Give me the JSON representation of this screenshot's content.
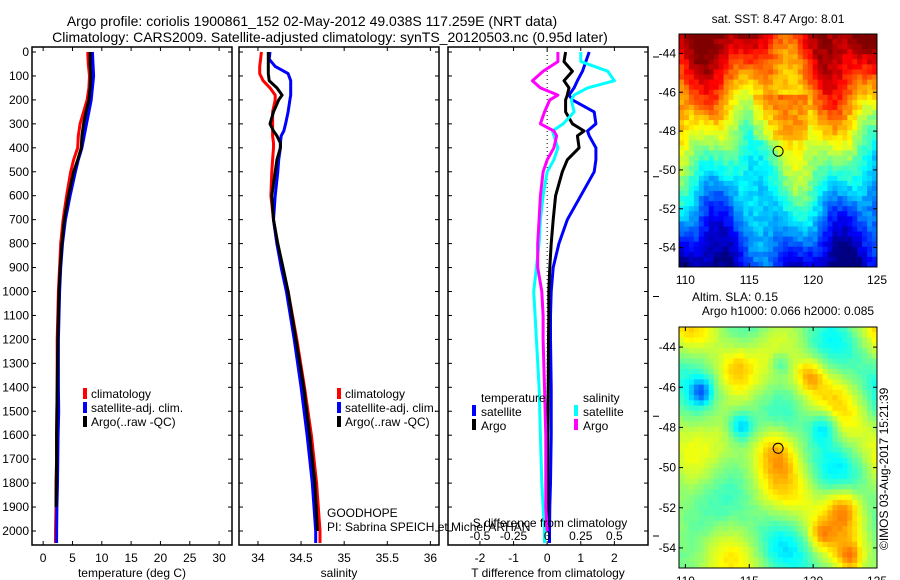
{
  "header": {
    "title_line1": "Argo profile: coriolis 1900861_152 02-May-2012 49.038S 117.259E (NRT data)",
    "title_line2": "Climatology: CARS2009. Satellite-adjusted climatology: synTS_20120503.nc (0.95d later)"
  },
  "colors": {
    "climatology": "#ff0000",
    "satellite": "#0000ff",
    "argo": "#000000",
    "salinity_satellite": "#00ffff",
    "salinity_argo": "#ff00ff"
  },
  "chart_data": [
    {
      "id": "temperature",
      "type": "line",
      "xlabel": "temperature (deg C)",
      "ylabel": "",
      "xlim": [
        -1.9,
        32.2
      ],
      "ylim": [
        2060,
        0
      ],
      "xticks": [
        0,
        5,
        10,
        15,
        20,
        25,
        30
      ],
      "xtick_labels": [
        "0",
        "5",
        "10",
        "15",
        "20",
        "25",
        "30"
      ],
      "yticks": [
        0,
        100,
        200,
        300,
        400,
        500,
        600,
        700,
        800,
        900,
        1000,
        1100,
        1200,
        1300,
        1400,
        1500,
        1600,
        1700,
        1800,
        1900,
        2000
      ],
      "ytick_labels": [
        "0",
        "100",
        "200",
        "300",
        "400",
        "500",
        "600",
        "700",
        "800",
        "900",
        "1000",
        "1100",
        "1200",
        "1300",
        "1400",
        "1500",
        "1600",
        "1700",
        "1800",
        "1900",
        "2000"
      ],
      "legend": [
        "climatology",
        "satellite-adj. clim.",
        "Argo(..raw -QC)"
      ],
      "depth": [
        0,
        50,
        100,
        150,
        200,
        250,
        300,
        350,
        400,
        450,
        500,
        600,
        700,
        800,
        900,
        1000,
        1100,
        1200,
        1300,
        1400,
        1500,
        1600,
        1700,
        1800,
        1900,
        2000,
        2050
      ],
      "series": [
        {
          "name": "climatology",
          "color_key": "climatology",
          "values": [
            7.6,
            7.7,
            7.9,
            7.8,
            7.5,
            6.9,
            6.3,
            6.0,
            5.9,
            5.2,
            4.7,
            4.0,
            3.4,
            3.0,
            2.8,
            2.6,
            2.5,
            2.4,
            2.4,
            2.4,
            2.35,
            2.3,
            2.3,
            2.2,
            2.2,
            2.1,
            2.1
          ]
        },
        {
          "name": "satellite-adj. clim.",
          "color_key": "satellite",
          "values": [
            8.4,
            8.5,
            8.6,
            8.4,
            8.2,
            7.8,
            7.4,
            7.0,
            6.6,
            6.0,
            5.5,
            4.6,
            3.8,
            3.3,
            3.0,
            2.8,
            2.7,
            2.6,
            2.6,
            2.6,
            2.65,
            2.55,
            2.5,
            2.45,
            2.35,
            2.3,
            2.3
          ]
        },
        {
          "name": "Argo(..raw -QC)",
          "color_key": "argo",
          "values": [
            8.0,
            8.0,
            8.1,
            8.0,
            7.8,
            7.3,
            6.9,
            6.6,
            6.5,
            5.9,
            5.2,
            4.3,
            3.6,
            3.2,
            2.9,
            2.7,
            2.6,
            2.5,
            2.45,
            2.4,
            2.35,
            2.3,
            2.3,
            2.25,
            2.2,
            null,
            null
          ]
        }
      ]
    },
    {
      "id": "salinity",
      "type": "line",
      "xlabel": "salinity",
      "xlim": [
        33.78,
        36.1
      ],
      "ylim": [
        2060,
        0
      ],
      "xticks": [
        34,
        34.5,
        35,
        35.5,
        36
      ],
      "xtick_labels": [
        "34",
        "34.5",
        "35",
        "35.5",
        "36"
      ],
      "legend": [
        "climatology",
        "satellite-adj. clim.",
        "Argo(..raw -QC)"
      ],
      "annotation": [
        "GOODHOPE",
        "PI: Sabrina SPEICH et Michel ARHAN"
      ],
      "depth": [
        0,
        30,
        60,
        90,
        120,
        150,
        180,
        200,
        250,
        300,
        330,
        350,
        380,
        400,
        450,
        500,
        600,
        700,
        800,
        900,
        1000,
        1200,
        1400,
        1600,
        1800,
        2000,
        2050
      ],
      "series": [
        {
          "name": "climatology",
          "color_key": "climatology",
          "values": [
            34.04,
            34.03,
            34.02,
            34.02,
            34.06,
            34.14,
            34.2,
            34.2,
            34.17,
            34.17,
            34.17,
            34.17,
            34.18,
            34.18,
            34.17,
            34.16,
            34.15,
            34.18,
            34.22,
            34.28,
            34.35,
            34.45,
            34.54,
            34.62,
            34.68,
            34.72,
            34.72
          ]
        },
        {
          "name": "satellite-adj. clim.",
          "color_key": "satellite",
          "values": [
            34.14,
            34.13,
            34.2,
            34.35,
            34.38,
            34.38,
            34.38,
            34.37,
            34.35,
            34.32,
            34.3,
            34.27,
            34.26,
            34.26,
            34.24,
            34.23,
            34.2,
            34.18,
            34.22,
            34.27,
            34.33,
            34.42,
            34.5,
            34.57,
            34.63,
            34.67,
            34.67
          ]
        },
        {
          "name": "Argo(..raw -QC)",
          "color_key": "argo",
          "values": [
            34.12,
            34.12,
            34.12,
            34.12,
            34.13,
            34.22,
            34.28,
            34.24,
            34.18,
            34.14,
            34.18,
            34.22,
            34.26,
            34.26,
            34.22,
            34.2,
            34.16,
            34.18,
            34.23,
            34.29,
            34.35,
            34.44,
            34.53,
            34.6,
            34.66,
            34.69,
            null
          ]
        }
      ]
    },
    {
      "id": "difference",
      "type": "line",
      "xlabel": "T difference from climatology",
      "xlabel2": "S difference from climatology",
      "xlim": [
        -2.95,
        3.0
      ],
      "ylim": [
        2060,
        0
      ],
      "xticks": [
        -2,
        -1,
        0,
        1,
        2
      ],
      "xtick_labels": [
        "-2",
        "-1",
        "0",
        "1",
        "2"
      ],
      "xticks2": [
        -0.5,
        -0.25,
        0,
        0.25,
        0.5
      ],
      "xtick_labels2": [
        "-0.5",
        "-0.25",
        "0",
        "0.25",
        "0.5"
      ],
      "legend_groups": [
        {
          "title": "temperature",
          "items": [
            {
              "label": "satellite",
              "color_key": "satellite"
            },
            {
              "label": "Argo",
              "color_key": "argo"
            }
          ]
        },
        {
          "title": "salinity",
          "items": [
            {
              "label": "satellite",
              "color_key": "salinity_satellite"
            },
            {
              "label": "Argo",
              "color_key": "salinity_argo"
            }
          ]
        }
      ],
      "depth": [
        0,
        40,
        80,
        120,
        150,
        180,
        200,
        250,
        300,
        330,
        350,
        400,
        450,
        500,
        600,
        700,
        800,
        900,
        1000,
        1100,
        1200,
        1400,
        1600,
        1800,
        1900,
        2000,
        2050
      ],
      "series": [
        {
          "name": "temperature satellite",
          "color_key": "satellite",
          "axis": "T",
          "values": [
            1.25,
            1.15,
            1.05,
            0.9,
            0.8,
            0.65,
            0.75,
            1.4,
            1.45,
            1.2,
            1.25,
            1.45,
            1.45,
            1.4,
            1.0,
            0.6,
            0.35,
            0.18,
            0.12,
            0.1,
            0.1,
            0.12,
            0.12,
            0.1,
            0.08,
            0.07,
            0.07
          ]
        },
        {
          "name": "temperature Argo",
          "color_key": "argo",
          "axis": "T",
          "values": [
            0.55,
            0.5,
            0.75,
            0.5,
            0.65,
            0.6,
            0.55,
            0.55,
            0.75,
            1.1,
            0.9,
            0.95,
            0.6,
            0.45,
            0.25,
            0.18,
            0.12,
            0.08,
            0.05,
            0.05,
            0.04,
            0.03,
            0.02,
            0.02,
            0.02,
            0.0,
            null
          ]
        },
        {
          "name": "salinity satellite",
          "color_key": "salinity_satellite",
          "axis": "S",
          "values": [
            0.25,
            0.25,
            0.45,
            0.5,
            0.3,
            0.2,
            0.18,
            0.2,
            0.12,
            0.04,
            0.05,
            0.08,
            0.05,
            0.0,
            -0.03,
            -0.05,
            -0.06,
            -0.08,
            -0.1,
            -0.09,
            -0.08,
            -0.06,
            -0.05,
            -0.04,
            -0.03,
            -0.02,
            -0.02
          ]
        },
        {
          "name": "salinity Argo",
          "color_key": "salinity_argo",
          "axis": "S",
          "values": [
            0.08,
            0.08,
            -0.03,
            -0.11,
            -0.05,
            0.08,
            0.02,
            -0.02,
            -0.05,
            0.05,
            0.07,
            0.05,
            0.0,
            -0.03,
            -0.05,
            -0.06,
            -0.07,
            -0.07,
            -0.04,
            -0.03,
            -0.03,
            -0.02,
            -0.01,
            -0.01,
            -0.01,
            0.0,
            null
          ]
        }
      ]
    },
    {
      "id": "sst_map",
      "type": "heatmap",
      "title": "sat. SST: 8.47 Argo: 8.01",
      "xlim": [
        109.5,
        125
      ],
      "ylim": [
        -55,
        -43
      ],
      "xticks": [
        110,
        115,
        120,
        125
      ],
      "xtick_labels": [
        "110",
        "115",
        "120",
        "125"
      ],
      "yticks": [
        -44,
        -46,
        -48,
        -50,
        -52,
        -54
      ],
      "ytick_labels": [
        "-44",
        "-46",
        "-48",
        "-50",
        "-52",
        "-54"
      ],
      "marker": {
        "lon": 117.259,
        "lat": -49.038
      }
    },
    {
      "id": "sla_map",
      "type": "heatmap",
      "title_line1": "Altim. SLA: 0.15",
      "title_line2": "Argo h1000: 0.066 h2000: 0.085",
      "xlim": [
        109.5,
        125
      ],
      "ylim": [
        -55,
        -43
      ],
      "xticks": [
        110,
        115,
        120,
        125
      ],
      "xtick_labels": [
        "110",
        "115",
        "120",
        "125"
      ],
      "yticks": [
        -44,
        -46,
        -48,
        -50,
        -52,
        -54
      ],
      "ytick_labels": [
        "-44",
        "-46",
        "-48",
        "-50",
        "-52",
        "-54"
      ],
      "marker": {
        "lon": 117.259,
        "lat": -49.038
      }
    }
  ],
  "footer": {
    "credit": "©IMOS 03-Aug-2017 15:21:39"
  }
}
